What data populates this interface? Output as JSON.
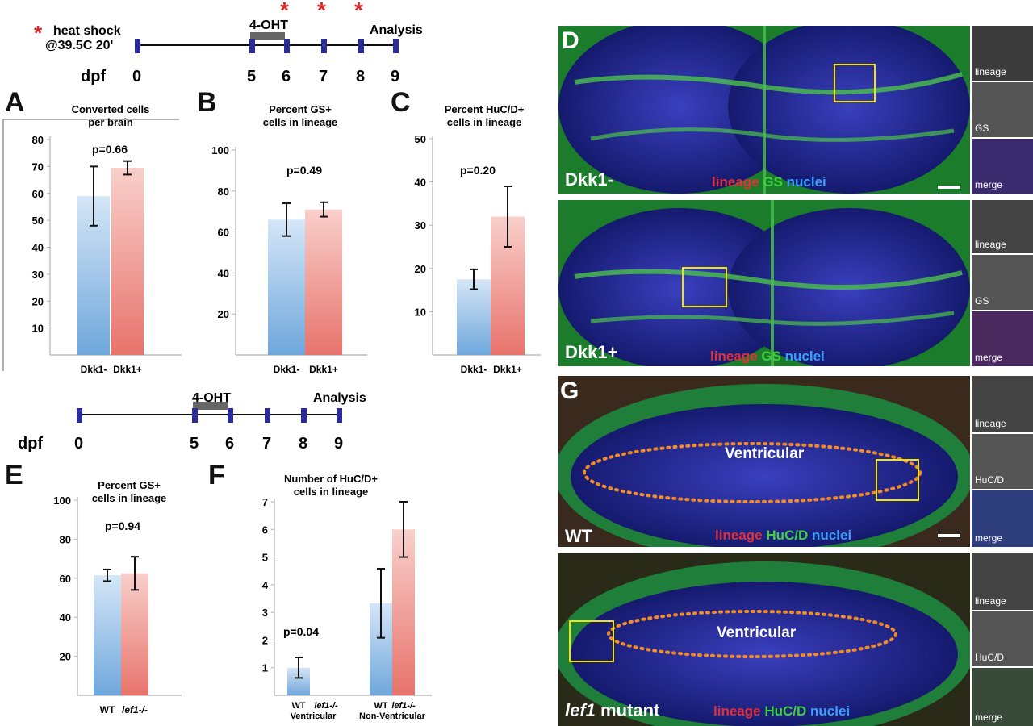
{
  "timeline_top": {
    "heat_shock_line1": "heat shock",
    "heat_shock_line2": "@39.5C 20'",
    "drug_label": "4-OHT",
    "analysis_label": "Analysis",
    "axis_label": "dpf",
    "days": [
      "0",
      "5",
      "6",
      "7",
      "8",
      "9"
    ]
  },
  "timeline_bottom": {
    "drug_label": "4-OHT",
    "analysis_label": "Analysis",
    "axis_label": "dpf",
    "days": [
      "0",
      "5",
      "6",
      "7",
      "8",
      "9"
    ]
  },
  "colors": {
    "blue_bar": "#6fa7dc",
    "red_bar": "#e8736c",
    "tick_mark": "#2b2b9a",
    "star": "#d62728",
    "roi_box": "#f5e300",
    "ventricle_outline": "#f08a2a"
  },
  "chart_data": [
    {
      "panel": "A",
      "type": "bar",
      "title": "Converted cells per brain",
      "title_lines": [
        "Converted cells",
        "per brain"
      ],
      "categories": [
        "Dkk1-",
        "Dkk1+"
      ],
      "values": [
        59,
        69.5
      ],
      "errors": [
        11,
        2.5
      ],
      "ylim": [
        0,
        80
      ],
      "yticks": [
        10,
        20,
        30,
        40,
        50,
        60,
        70,
        80
      ],
      "annotation": "p=0.66"
    },
    {
      "panel": "B",
      "type": "bar",
      "title": "Percent GS+ cells in lineage",
      "title_lines": [
        "Percent GS+",
        "cells in lineage"
      ],
      "categories": [
        "Dkk1-",
        "Dkk1+"
      ],
      "values": [
        66,
        71
      ],
      "errors": [
        8,
        3.5
      ],
      "ylim": [
        0,
        100
      ],
      "yticks": [
        20,
        40,
        60,
        80,
        100
      ],
      "annotation": "p=0.49"
    },
    {
      "panel": "C",
      "type": "bar",
      "title": "Percent HuC/D+ cells in lineage",
      "title_lines": [
        "Percent HuC/D+",
        "cells in lineage"
      ],
      "categories": [
        "Dkk1-",
        "Dkk1+"
      ],
      "values": [
        17.5,
        32
      ],
      "errors": [
        2.3,
        7
      ],
      "ylim": [
        0,
        50
      ],
      "yticks": [
        10,
        20,
        30,
        40,
        50
      ],
      "annotation": "p=0.20"
    },
    {
      "panel": "E",
      "type": "bar",
      "title": "Percent GS+ cells in lineage",
      "title_lines": [
        "Percent GS+",
        "cells in lineage"
      ],
      "categories": [
        "WT",
        "lef1-/-"
      ],
      "values": [
        61.5,
        62.5
      ],
      "errors": [
        3,
        8.5
      ],
      "ylim": [
        0,
        100
      ],
      "yticks": [
        20,
        40,
        60,
        80,
        100
      ],
      "annotation": "p=0.94"
    },
    {
      "panel": "F",
      "type": "bar",
      "title": "Number of HuC/D+ cells in lineage",
      "title_lines": [
        "Number of HuC/D+",
        "cells in lineage"
      ],
      "categories": [
        "WT",
        "lef1-/-",
        "WT",
        "lef1-/-"
      ],
      "groups": [
        "Ventricular",
        "Non-Ventricular"
      ],
      "values": [
        1,
        0,
        3.33,
        6
      ],
      "errors": [
        0.37,
        0,
        1.25,
        1
      ],
      "ylim": [
        0,
        7
      ],
      "yticks": [
        1,
        2,
        3,
        4,
        5,
        6,
        7
      ],
      "annotation": "p=0.04"
    }
  ],
  "micrographs": {
    "D_top": {
      "panel_letter": "D",
      "condition": "Dkk1-",
      "legend": [
        "lineage",
        "GS",
        "nuclei"
      ],
      "side": [
        "lineage",
        "GS",
        "merge"
      ]
    },
    "D_bottom": {
      "condition": "Dkk1+",
      "legend": [
        "lineage",
        "GS",
        "nuclei"
      ],
      "side": [
        "lineage",
        "GS",
        "merge"
      ]
    },
    "G_top": {
      "panel_letter": "G",
      "condition": "WT",
      "region": "Ventricular",
      "legend": [
        "lineage",
        "HuC/D",
        "nuclei"
      ],
      "side": [
        "lineage",
        "HuC/D",
        "merge"
      ]
    },
    "G_bottom": {
      "condition_italic": "lef1",
      "condition_rest": " mutant",
      "region": "Ventricular",
      "legend": [
        "lineage",
        "HuC/D",
        "nuclei"
      ],
      "side": [
        "lineage",
        "HuC/D",
        "merge"
      ]
    }
  }
}
